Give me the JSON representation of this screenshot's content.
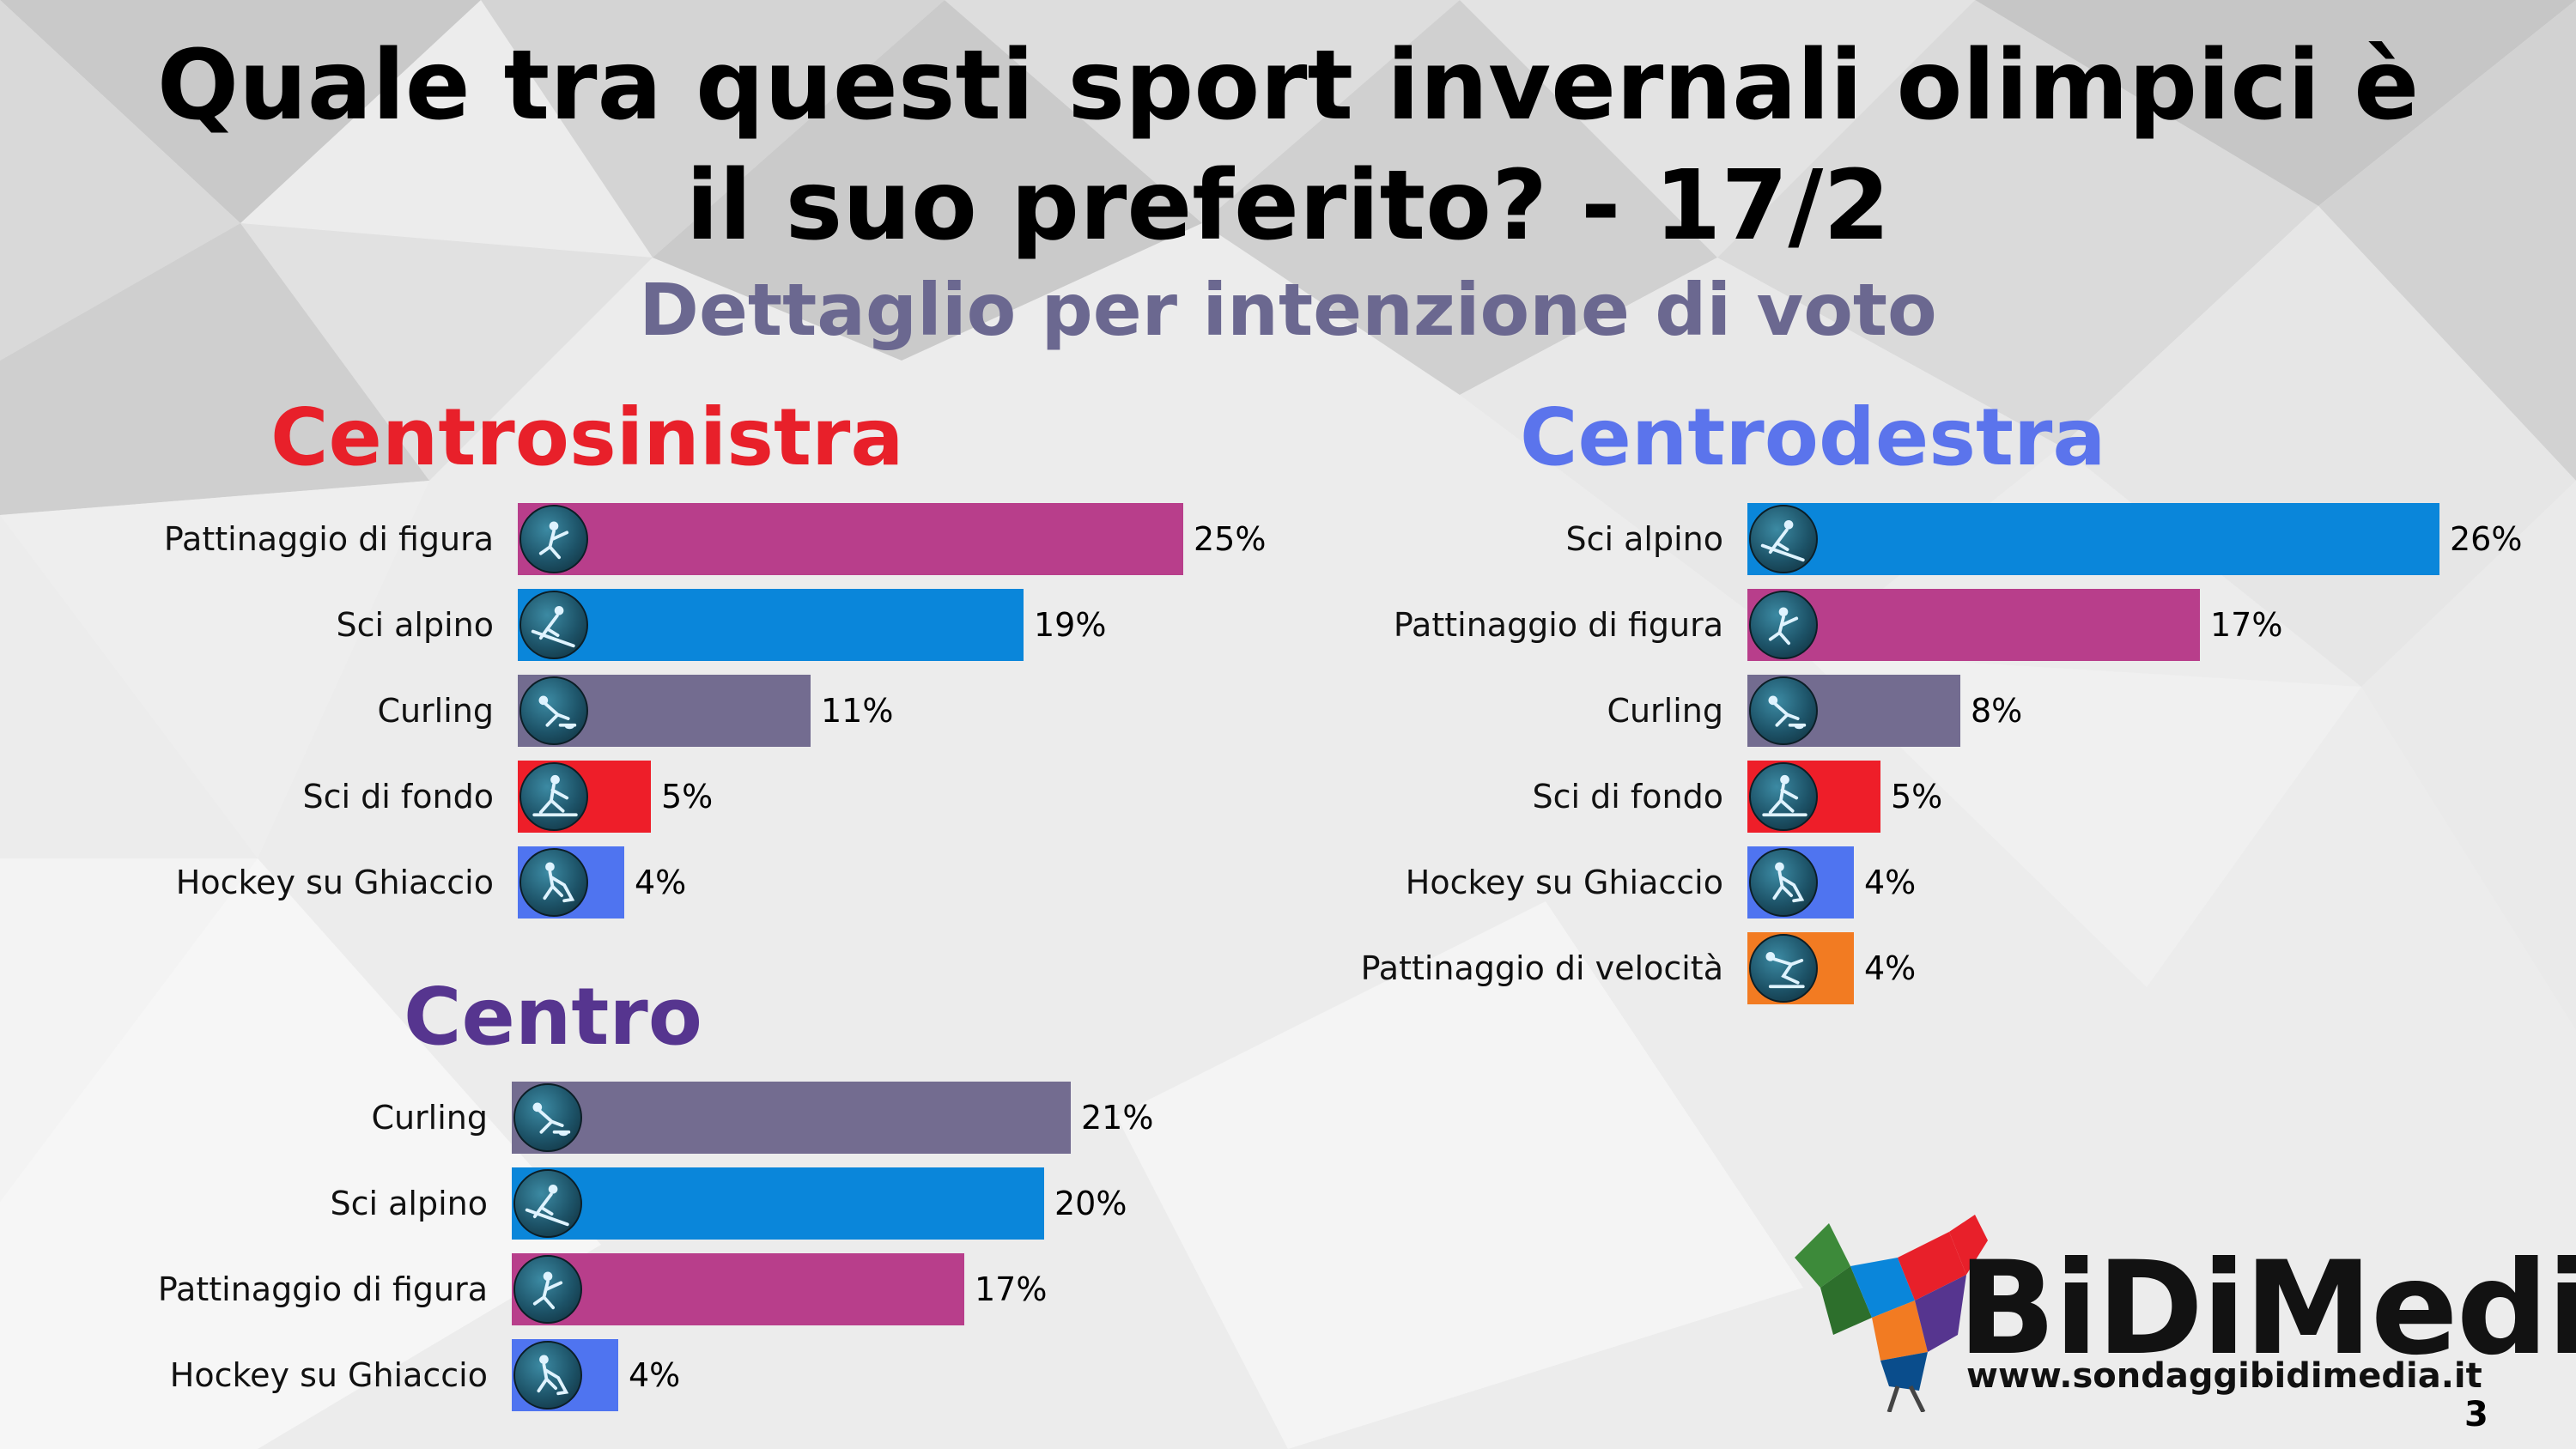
{
  "title": "Quale tra questi sport invernali olimpici è il suo preferito? - 17/2",
  "subtitle": "Dettaglio per intenzione di voto",
  "logo": {
    "name": "BiDiMedia",
    "url": "www.sondaggibidimedia.it"
  },
  "page_number": "3",
  "colors": {
    "pattinaggio_di_figura": "#b83e8b",
    "sci_alpino": "#0a86da",
    "curling": "#736c90",
    "sci_di_fondo": "#ee1e29",
    "hockey_su_ghiaccio": "#4f74f0",
    "pattinaggio_di_velocita": "#f27b22",
    "centrosinistra": "#e8202a",
    "centrodestra": "#5b74ec",
    "centro": "#56358f"
  },
  "chart_data": [
    {
      "type": "bar",
      "orientation": "horizontal",
      "title": "Centrosinistra",
      "categories": [
        "Pattinaggio di figura",
        "Sci alpino",
        "Curling",
        "Sci di fondo",
        "Hockey su Ghiaccio"
      ],
      "values": [
        25,
        19,
        11,
        5,
        4
      ],
      "labels": [
        "25%",
        "19%",
        "11%",
        "5%",
        "4%"
      ],
      "icons": [
        "figure-skating-icon",
        "alpine-skiing-icon",
        "curling-icon",
        "cross-country-skiing-icon",
        "ice-hockey-icon"
      ],
      "colors": [
        "#b83e8b",
        "#0a86da",
        "#736c90",
        "#ee1e29",
        "#4f74f0"
      ],
      "unit": "%"
    },
    {
      "type": "bar",
      "orientation": "horizontal",
      "title": "Centrodestra",
      "categories": [
        "Sci alpino",
        "Pattinaggio di figura",
        "Curling",
        "Sci di fondo",
        "Hockey su Ghiaccio",
        "Pattinaggio di velocità"
      ],
      "values": [
        26,
        17,
        8,
        5,
        4,
        4
      ],
      "labels": [
        "26%",
        "17%",
        "8%",
        "5%",
        "4%",
        "4%"
      ],
      "icons": [
        "alpine-skiing-icon",
        "figure-skating-icon",
        "curling-icon",
        "cross-country-skiing-icon",
        "ice-hockey-icon",
        "speed-skating-icon"
      ],
      "colors": [
        "#0a86da",
        "#b83e8b",
        "#736c90",
        "#ee1e29",
        "#4f74f0",
        "#f27b22"
      ],
      "unit": "%"
    },
    {
      "type": "bar",
      "orientation": "horizontal",
      "title": "Centro",
      "categories": [
        "Curling",
        "Sci alpino",
        "Pattinaggio di figura",
        "Hockey su Ghiaccio"
      ],
      "values": [
        21,
        20,
        17,
        4
      ],
      "labels": [
        "21%",
        "20%",
        "17%",
        "4%"
      ],
      "icons": [
        "curling-icon",
        "alpine-skiing-icon",
        "figure-skating-icon",
        "ice-hockey-icon"
      ],
      "colors": [
        "#736c90",
        "#0a86da",
        "#b83e8b",
        "#4f74f0"
      ],
      "unit": "%"
    }
  ]
}
